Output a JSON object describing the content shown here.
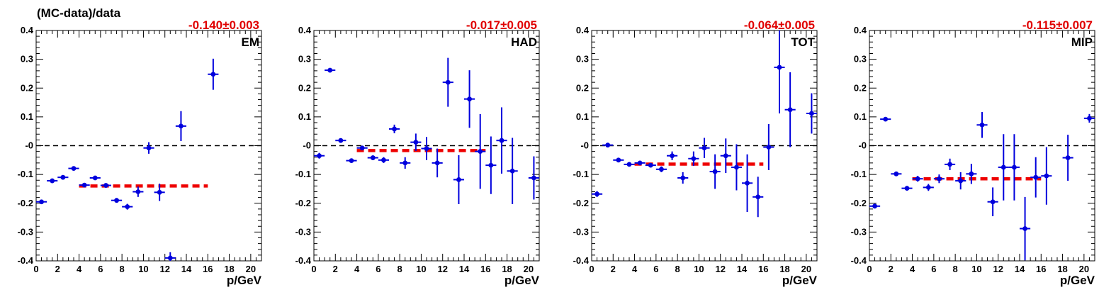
{
  "y_axis_label": "(MC-data)/data",
  "colors": {
    "points": "#0000dd",
    "fit": "#ee0000",
    "zero_line": "#000000",
    "frame": "#000000"
  },
  "chart_data": [
    {
      "type": "scatter",
      "panel_label": "EM",
      "fit_text": "-0.140±0.003",
      "fit": {
        "value": -0.14,
        "x_range": [
          4,
          16
        ]
      },
      "xlabel": "p/GeV",
      "xlim": [
        0,
        21
      ],
      "ylim": [
        -0.4,
        0.4
      ],
      "x_ticks": [
        0,
        2,
        4,
        6,
        8,
        10,
        12,
        14,
        16,
        18,
        20
      ],
      "y_ticks": [
        "0.4",
        "0.3",
        "0.2",
        "0.1",
        "-0",
        "-0.1",
        "-0.2",
        "-0.3",
        "-0.4"
      ],
      "points": [
        {
          "x": 0.5,
          "y": -0.195,
          "err": 0.006
        },
        {
          "x": 1.5,
          "y": -0.122,
          "err": 0.005
        },
        {
          "x": 2.5,
          "y": -0.11,
          "err": 0.005
        },
        {
          "x": 3.5,
          "y": -0.079,
          "err": 0.005
        },
        {
          "x": 4.5,
          "y": -0.137,
          "err": 0.005
        },
        {
          "x": 5.5,
          "y": -0.112,
          "err": 0.005
        },
        {
          "x": 6.5,
          "y": -0.138,
          "err": 0.006
        },
        {
          "x": 7.5,
          "y": -0.19,
          "err": 0.008
        },
        {
          "x": 8.5,
          "y": -0.212,
          "err": 0.01
        },
        {
          "x": 9.5,
          "y": -0.16,
          "err": 0.018
        },
        {
          "x": 10.5,
          "y": -0.008,
          "err": 0.02
        },
        {
          "x": 11.5,
          "y": -0.162,
          "err": 0.03
        },
        {
          "x": 12.5,
          "y": -0.39,
          "err": 0.02
        },
        {
          "x": 13.5,
          "y": 0.068,
          "err": 0.052
        },
        {
          "x": 16.5,
          "y": 0.248,
          "err": 0.054
        }
      ]
    },
    {
      "type": "scatter",
      "panel_label": "HAD",
      "fit_text": "-0.017±0.005",
      "fit": {
        "value": -0.017,
        "x_range": [
          4,
          16
        ]
      },
      "xlabel": "p/GeV",
      "xlim": [
        0,
        21
      ],
      "ylim": [
        -0.4,
        0.4
      ],
      "x_ticks": [
        0,
        2,
        4,
        6,
        8,
        10,
        12,
        14,
        16,
        18,
        20
      ],
      "y_ticks": [
        "0.4",
        "0.3",
        "0.2",
        "0.1",
        "-0",
        "-0.1",
        "-0.2",
        "-0.3",
        "-0.4"
      ],
      "points": [
        {
          "x": 0.5,
          "y": -0.035,
          "err": 0.01
        },
        {
          "x": 1.5,
          "y": 0.262,
          "err": 0.005
        },
        {
          "x": 2.5,
          "y": 0.018,
          "err": 0.006
        },
        {
          "x": 3.5,
          "y": -0.052,
          "err": 0.006
        },
        {
          "x": 4.5,
          "y": -0.008,
          "err": 0.007
        },
        {
          "x": 5.5,
          "y": -0.042,
          "err": 0.008
        },
        {
          "x": 6.5,
          "y": -0.05,
          "err": 0.01
        },
        {
          "x": 7.5,
          "y": 0.058,
          "err": 0.015
        },
        {
          "x": 8.5,
          "y": -0.06,
          "err": 0.02
        },
        {
          "x": 9.5,
          "y": 0.012,
          "err": 0.03
        },
        {
          "x": 10.5,
          "y": -0.01,
          "err": 0.04
        },
        {
          "x": 11.5,
          "y": -0.06,
          "err": 0.05
        },
        {
          "x": 12.5,
          "y": 0.22,
          "err": 0.085
        },
        {
          "x": 13.5,
          "y": -0.118,
          "err": 0.085
        },
        {
          "x": 14.5,
          "y": 0.162,
          "err": 0.1
        },
        {
          "x": 15.5,
          "y": -0.02,
          "err": 0.13
        },
        {
          "x": 16.5,
          "y": -0.068,
          "err": 0.1
        },
        {
          "x": 17.5,
          "y": 0.018,
          "err": 0.115
        },
        {
          "x": 18.5,
          "y": -0.088,
          "err": 0.115
        },
        {
          "x": 20.5,
          "y": -0.112,
          "err": 0.075
        }
      ]
    },
    {
      "type": "scatter",
      "panel_label": "TOT",
      "fit_text": "-0.064±0.005",
      "fit": {
        "value": -0.064,
        "x_range": [
          4,
          16
        ]
      },
      "xlabel": "p/GeV",
      "xlim": [
        0,
        21
      ],
      "ylim": [
        -0.4,
        0.4
      ],
      "x_ticks": [
        0,
        2,
        4,
        6,
        8,
        10,
        12,
        14,
        16,
        18,
        20
      ],
      "y_ticks": [
        "0.4",
        "0.3",
        "0.2",
        "0.1",
        "-0",
        "-0.1",
        "-0.2",
        "-0.3",
        "-0.4"
      ],
      "points": [
        {
          "x": 0.5,
          "y": -0.168,
          "err": 0.01
        },
        {
          "x": 1.5,
          "y": 0.002,
          "err": 0.005
        },
        {
          "x": 2.5,
          "y": -0.05,
          "err": 0.005
        },
        {
          "x": 3.5,
          "y": -0.065,
          "err": 0.005
        },
        {
          "x": 4.5,
          "y": -0.06,
          "err": 0.006
        },
        {
          "x": 5.5,
          "y": -0.068,
          "err": 0.007
        },
        {
          "x": 6.5,
          "y": -0.082,
          "err": 0.01
        },
        {
          "x": 7.5,
          "y": -0.035,
          "err": 0.015
        },
        {
          "x": 8.5,
          "y": -0.112,
          "err": 0.02
        },
        {
          "x": 9.5,
          "y": -0.045,
          "err": 0.025
        },
        {
          "x": 10.5,
          "y": -0.008,
          "err": 0.035
        },
        {
          "x": 11.5,
          "y": -0.09,
          "err": 0.06
        },
        {
          "x": 12.5,
          "y": -0.035,
          "err": 0.06
        },
        {
          "x": 13.5,
          "y": -0.075,
          "err": 0.08
        },
        {
          "x": 14.5,
          "y": -0.13,
          "err": 0.1
        },
        {
          "x": 15.5,
          "y": -0.178,
          "err": 0.07
        },
        {
          "x": 16.5,
          "y": -0.005,
          "err": 0.08
        },
        {
          "x": 17.5,
          "y": 0.272,
          "err": 0.16
        },
        {
          "x": 18.5,
          "y": 0.125,
          "err": 0.13
        },
        {
          "x": 20.5,
          "y": 0.112,
          "err": 0.07
        }
      ]
    },
    {
      "type": "scatter",
      "panel_label": "MIP",
      "fit_text": "-0.115±0.007",
      "fit": {
        "value": -0.115,
        "x_range": [
          4,
          16
        ]
      },
      "xlabel": "p/GeV",
      "xlim": [
        0,
        21
      ],
      "ylim": [
        -0.4,
        0.4
      ],
      "x_ticks": [
        0,
        2,
        4,
        6,
        8,
        10,
        12,
        14,
        16,
        18,
        20
      ],
      "y_ticks": [
        "0.4",
        "0.3",
        "0.2",
        "0.1",
        "-0",
        "-0.1",
        "-0.2",
        "-0.3",
        "-0.4"
      ],
      "points": [
        {
          "x": 0.5,
          "y": -0.21,
          "err": 0.008
        },
        {
          "x": 1.5,
          "y": 0.092,
          "err": 0.005
        },
        {
          "x": 2.5,
          "y": -0.098,
          "err": 0.006
        },
        {
          "x": 3.5,
          "y": -0.148,
          "err": 0.008
        },
        {
          "x": 4.5,
          "y": -0.115,
          "err": 0.01
        },
        {
          "x": 5.5,
          "y": -0.145,
          "err": 0.012
        },
        {
          "x": 6.5,
          "y": -0.115,
          "err": 0.015
        },
        {
          "x": 7.5,
          "y": -0.065,
          "err": 0.02
        },
        {
          "x": 8.5,
          "y": -0.122,
          "err": 0.03
        },
        {
          "x": 9.5,
          "y": -0.098,
          "err": 0.035
        },
        {
          "x": 10.5,
          "y": 0.072,
          "err": 0.045
        },
        {
          "x": 11.5,
          "y": -0.195,
          "err": 0.05
        },
        {
          "x": 12.5,
          "y": -0.075,
          "err": 0.115
        },
        {
          "x": 13.5,
          "y": -0.075,
          "err": 0.115
        },
        {
          "x": 14.5,
          "y": -0.288,
          "err": 0.11
        },
        {
          "x": 15.5,
          "y": -0.11,
          "err": 0.07
        },
        {
          "x": 16.5,
          "y": -0.105,
          "err": 0.1
        },
        {
          "x": 18.5,
          "y": -0.042,
          "err": 0.08
        },
        {
          "x": 20.5,
          "y": 0.095,
          "err": 0.015
        }
      ]
    }
  ]
}
